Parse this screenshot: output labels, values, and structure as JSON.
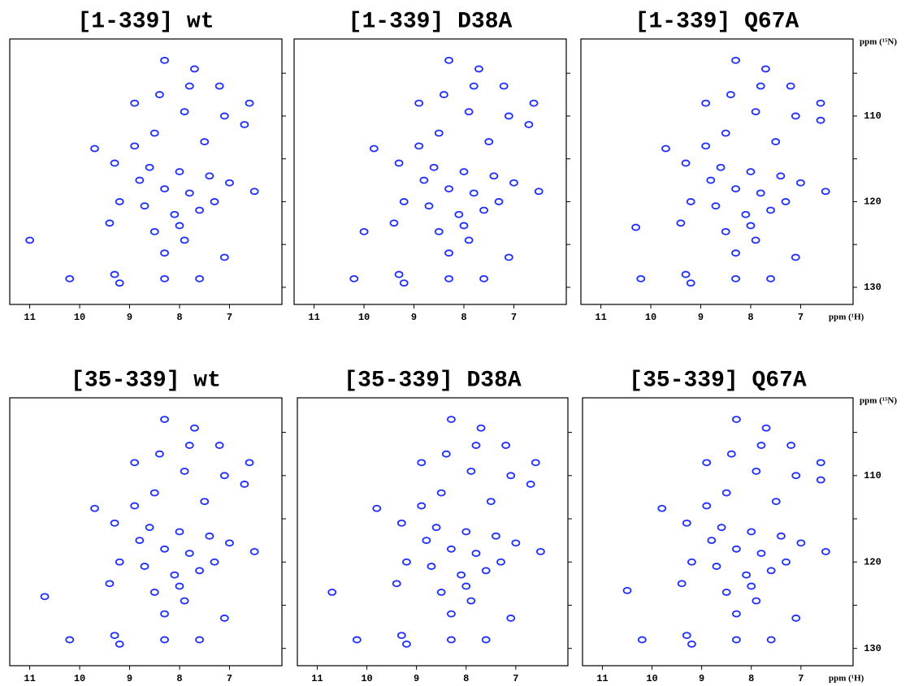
{
  "chart_data": [
    {
      "type": "scatter",
      "title": "[1-339] wt",
      "color": "#1f2fff",
      "x": [
        8.3,
        7.7,
        7.8,
        8.9,
        8.4,
        7.2,
        6.6,
        7.9,
        7.1,
        6.7,
        8.5,
        8.9,
        9.7,
        7.5,
        9.3,
        8.6,
        8.0,
        7.4,
        8.3,
        7.8,
        6.5,
        7.0,
        8.7,
        9.2,
        8.1,
        7.6,
        9.4,
        8.5,
        7.9,
        8.3,
        7.1,
        11.0,
        10.2,
        9.3,
        8.3,
        7.6,
        9.2,
        8.0,
        7.3,
        8.8
      ],
      "y": [
        103.5,
        104.5,
        106.5,
        108.5,
        107.5,
        106.5,
        108.5,
        109.5,
        110.0,
        111.0,
        112.0,
        113.5,
        113.8,
        113.0,
        115.5,
        116.0,
        116.5,
        117.0,
        118.5,
        119.0,
        118.8,
        117.8,
        120.5,
        120.0,
        121.5,
        121.0,
        122.5,
        123.5,
        124.5,
        126.0,
        126.5,
        124.5,
        129.0,
        128.5,
        129.0,
        129.0,
        129.5,
        122.8,
        120.0,
        117.5
      ],
      "xlim": [
        11.4,
        5.95
      ],
      "ylim": [
        101,
        132
      ],
      "xticks": [
        11,
        10,
        9,
        8,
        7
      ],
      "yticks": [
        {
          "value": 105,
          "label": null
        },
        {
          "value": 110,
          "label": null
        },
        {
          "value": 115,
          "label": null
        },
        {
          "value": 120,
          "label": null
        },
        {
          "value": 125,
          "label": null
        },
        {
          "value": 130,
          "label": null
        }
      ]
    },
    {
      "type": "scatter",
      "title": "[1-339] D38A",
      "color": "#1f2fff",
      "x": [
        8.3,
        7.7,
        7.8,
        8.9,
        8.4,
        7.2,
        6.6,
        7.9,
        7.1,
        6.7,
        8.5,
        8.9,
        9.8,
        7.5,
        9.3,
        8.6,
        8.0,
        7.4,
        8.3,
        7.8,
        6.5,
        7.0,
        8.7,
        9.2,
        8.1,
        7.6,
        9.4,
        8.5,
        7.9,
        8.3,
        7.1,
        10.0,
        10.2,
        9.3,
        8.3,
        7.6,
        9.2,
        8.0,
        7.3,
        8.8
      ],
      "y": [
        103.5,
        104.5,
        106.5,
        108.5,
        107.5,
        106.5,
        108.5,
        109.5,
        110.0,
        111.0,
        112.0,
        113.5,
        113.8,
        113.0,
        115.5,
        116.0,
        116.5,
        117.0,
        118.5,
        119.0,
        118.8,
        117.8,
        120.5,
        120.0,
        121.5,
        121.0,
        122.5,
        123.5,
        124.5,
        126.0,
        126.5,
        123.5,
        129.0,
        128.5,
        129.0,
        129.0,
        129.5,
        122.8,
        120.0,
        117.5
      ],
      "xlim": [
        11.4,
        5.95
      ],
      "ylim": [
        101,
        132
      ],
      "xticks": [
        11,
        10,
        9,
        8,
        7
      ],
      "yticks": [
        {
          "value": 105,
          "label": null
        },
        {
          "value": 110,
          "label": null
        },
        {
          "value": 115,
          "label": null
        },
        {
          "value": 120,
          "label": null
        },
        {
          "value": 125,
          "label": null
        },
        {
          "value": 130,
          "label": null
        }
      ]
    },
    {
      "type": "scatter",
      "title": "[1-339] Q67A",
      "color": "#1f2fff",
      "x_label": "ppm (¹H)",
      "y_label": "ppm (¹⁵N)",
      "x": [
        8.3,
        7.7,
        7.8,
        8.9,
        8.4,
        7.2,
        6.6,
        7.9,
        7.1,
        6.6,
        8.5,
        8.9,
        9.7,
        7.5,
        9.3,
        8.6,
        8.0,
        7.4,
        8.3,
        7.8,
        6.5,
        7.0,
        8.7,
        9.2,
        8.1,
        7.6,
        9.4,
        8.5,
        7.9,
        8.3,
        7.1,
        10.3,
        10.2,
        9.3,
        8.3,
        7.6,
        9.2,
        8.0,
        7.3,
        8.8
      ],
      "y": [
        103.5,
        104.5,
        106.5,
        108.5,
        107.5,
        106.5,
        108.5,
        109.5,
        110.0,
        110.5,
        112.0,
        113.5,
        113.8,
        113.0,
        115.5,
        116.0,
        116.5,
        117.0,
        118.5,
        119.0,
        118.8,
        117.8,
        120.5,
        120.0,
        121.5,
        121.0,
        122.5,
        123.5,
        124.5,
        126.0,
        126.5,
        123.0,
        129.0,
        128.5,
        129.0,
        129.0,
        129.5,
        122.8,
        120.0,
        117.5
      ],
      "xlim": [
        11.4,
        5.95
      ],
      "ylim": [
        101,
        132
      ],
      "xticks": [
        11,
        10,
        9,
        8,
        7
      ],
      "yticks": [
        {
          "value": 105,
          "label": null
        },
        110,
        {
          "value": 115,
          "label": null
        },
        120,
        {
          "value": 125,
          "label": null
        },
        130
      ]
    },
    {
      "type": "scatter",
      "title": "[35-339] wt",
      "color": "#1f2fff",
      "x": [
        8.3,
        7.7,
        7.8,
        8.9,
        8.4,
        7.2,
        6.6,
        7.9,
        7.1,
        6.7,
        8.5,
        8.9,
        9.7,
        7.5,
        9.3,
        8.6,
        8.0,
        7.4,
        8.3,
        7.8,
        6.5,
        7.0,
        8.7,
        9.2,
        8.1,
        7.6,
        9.4,
        8.5,
        7.9,
        8.3,
        7.1,
        10.7,
        10.2,
        9.3,
        8.3,
        7.6,
        9.2,
        8.0,
        7.3,
        8.8
      ],
      "y": [
        103.5,
        104.5,
        106.5,
        108.5,
        107.5,
        106.5,
        108.5,
        109.5,
        110.0,
        111.0,
        112.0,
        113.5,
        113.8,
        113.0,
        115.5,
        116.0,
        116.5,
        117.0,
        118.5,
        119.0,
        118.8,
        117.8,
        120.5,
        120.0,
        121.5,
        121.0,
        122.5,
        123.5,
        124.5,
        126.0,
        126.5,
        124.0,
        129.0,
        128.5,
        129.0,
        129.0,
        129.5,
        122.8,
        120.0,
        117.5
      ],
      "xlim": [
        11.4,
        5.95
      ],
      "ylim": [
        101,
        132
      ],
      "xticks": [
        11,
        10,
        9,
        8,
        7
      ],
      "yticks": [
        {
          "value": 105,
          "label": null
        },
        {
          "value": 110,
          "label": null
        },
        {
          "value": 115,
          "label": null
        },
        {
          "value": 120,
          "label": null
        },
        {
          "value": 125,
          "label": null
        },
        {
          "value": 130,
          "label": null
        }
      ]
    },
    {
      "type": "scatter",
      "title": "[35-339] D38A",
      "color": "#1f2fff",
      "x": [
        8.3,
        7.7,
        7.8,
        8.9,
        8.4,
        7.2,
        6.6,
        7.9,
        7.1,
        6.7,
        8.5,
        8.9,
        9.8,
        7.5,
        9.3,
        8.6,
        8.0,
        7.4,
        8.3,
        7.8,
        6.5,
        7.0,
        8.7,
        9.2,
        8.1,
        7.6,
        9.4,
        8.5,
        7.9,
        8.3,
        7.1,
        10.7,
        10.2,
        9.3,
        8.3,
        7.6,
        9.2,
        8.0,
        7.3,
        8.8
      ],
      "y": [
        103.5,
        104.5,
        106.5,
        108.5,
        107.5,
        106.5,
        108.5,
        109.5,
        110.0,
        111.0,
        112.0,
        113.5,
        113.8,
        113.0,
        115.5,
        116.0,
        116.5,
        117.0,
        118.5,
        119.0,
        118.8,
        117.8,
        120.5,
        120.0,
        121.5,
        121.0,
        122.5,
        123.5,
        124.5,
        126.0,
        126.5,
        123.5,
        129.0,
        128.5,
        129.0,
        129.0,
        129.5,
        122.8,
        120.0,
        117.5
      ],
      "xlim": [
        11.4,
        5.95
      ],
      "ylim": [
        101,
        132
      ],
      "xticks": [
        11,
        10,
        9,
        8,
        7
      ],
      "yticks": [
        {
          "value": 105,
          "label": null
        },
        {
          "value": 110,
          "label": null
        },
        {
          "value": 115,
          "label": null
        },
        {
          "value": 120,
          "label": null
        },
        {
          "value": 125,
          "label": null
        },
        {
          "value": 130,
          "label": null
        }
      ]
    },
    {
      "type": "scatter",
      "title": "[35-339] Q67A",
      "color": "#1f2fff",
      "x_label": "ppm (¹H)",
      "y_label": "ppm (¹⁵N)",
      "x": [
        8.3,
        7.7,
        7.8,
        8.9,
        8.4,
        7.2,
        6.6,
        7.9,
        7.1,
        6.6,
        8.5,
        8.9,
        9.8,
        7.5,
        9.3,
        8.6,
        8.0,
        7.4,
        8.3,
        7.8,
        6.5,
        7.0,
        8.7,
        9.2,
        8.1,
        7.6,
        9.4,
        8.5,
        7.9,
        8.3,
        7.1,
        10.5,
        10.2,
        9.3,
        8.3,
        7.6,
        9.2,
        8.0,
        7.3,
        8.8
      ],
      "y": [
        103.5,
        104.5,
        106.5,
        108.5,
        107.5,
        106.5,
        108.5,
        109.5,
        110.0,
        110.5,
        112.0,
        113.5,
        113.8,
        113.0,
        115.5,
        116.0,
        116.5,
        117.0,
        118.5,
        119.0,
        118.8,
        117.8,
        120.5,
        120.0,
        121.5,
        121.0,
        122.5,
        123.5,
        124.5,
        126.0,
        126.5,
        123.3,
        129.0,
        128.5,
        129.0,
        129.0,
        129.5,
        122.8,
        120.0,
        117.5
      ],
      "xlim": [
        11.4,
        5.95
      ],
      "ylim": [
        101,
        132
      ],
      "xticks": [
        11,
        10,
        9,
        8,
        7
      ],
      "yticks": [
        {
          "value": 105,
          "label": null
        },
        110,
        {
          "value": 115,
          "label": null
        },
        120,
        {
          "value": 125,
          "label": null
        },
        130
      ]
    }
  ]
}
